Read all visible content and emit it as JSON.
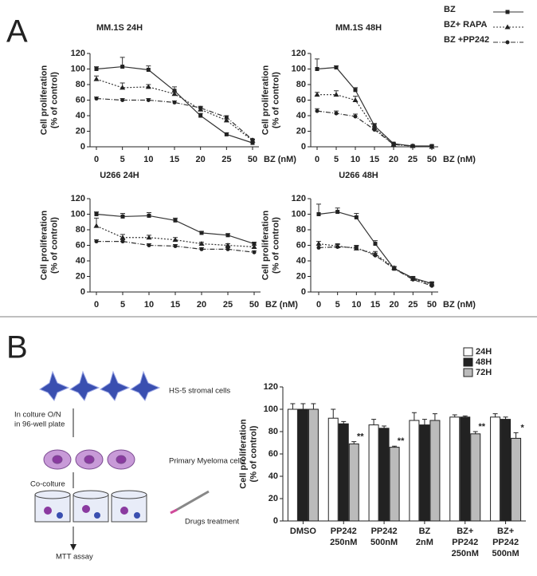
{
  "figure": {
    "panel_labels": [
      "A",
      "B"
    ],
    "diagram": {
      "stromal": "HS-5 stromal cells",
      "culture": [
        "In colture O/N",
        "in 96-well plate"
      ],
      "myeloma": "Primary Myeloma cells",
      "coculture": "Co-colture",
      "drugs": "Drugs treatment",
      "assay": "MTT assay"
    }
  },
  "chart_data": [
    {
      "type": "line",
      "title": "MM.1S 24H",
      "x_label": "BZ (nM)",
      "y_label": [
        "Cell proliferation",
        "(% of control)"
      ],
      "categories": [
        "0",
        "5",
        "10",
        "15",
        "20",
        "25",
        "50"
      ],
      "ylim": [
        0,
        120
      ],
      "yticks": [
        0,
        20,
        40,
        60,
        80,
        100,
        120
      ],
      "series": [
        {
          "name": "BZ",
          "color": "#333333",
          "marker": "square",
          "line_style": "solid",
          "values": [
            100,
            103,
            99,
            72,
            40,
            16,
            5
          ],
          "errors": [
            3,
            12,
            5,
            5,
            3,
            2,
            1
          ]
        },
        {
          "name": "BZ+ RAPA",
          "color": "#333333",
          "marker": "triangle",
          "line_style": "dotted",
          "values": [
            87,
            76,
            77,
            68,
            48,
            34,
            8
          ],
          "errors": [
            4,
            6,
            3,
            3,
            3,
            2,
            1
          ]
        },
        {
          "name": "BZ +PP242",
          "color": "#333333",
          "marker": "circle",
          "line_style": "dashdot",
          "values": [
            62,
            60,
            60,
            57,
            50,
            38,
            9
          ],
          "errors": [
            2,
            2,
            2,
            2,
            2,
            2,
            1
          ]
        }
      ]
    },
    {
      "type": "line",
      "title": "MM.1S 48H",
      "x_label": "BZ (nM)",
      "y_label": [
        "Cell proliferation",
        "(% of control)"
      ],
      "legend": "upper right",
      "categories": [
        "0",
        "5",
        "10",
        "15",
        "20",
        "25",
        "50"
      ],
      "ylim": [
        0,
        120
      ],
      "yticks": [
        0,
        20,
        40,
        60,
        80,
        100,
        120
      ],
      "series": [
        {
          "name": "BZ",
          "color": "#333333",
          "marker": "square",
          "line_style": "solid",
          "values": [
            100,
            102,
            73,
            27,
            4,
            1,
            1
          ],
          "errors": [
            13,
            2,
            3,
            3,
            1,
            1,
            1
          ]
        },
        {
          "name": "BZ+ RAPA",
          "color": "#333333",
          "marker": "triangle",
          "line_style": "dotted",
          "values": [
            67,
            67,
            60,
            24,
            3,
            1,
            0
          ],
          "errors": [
            3,
            5,
            5,
            2,
            1,
            0,
            0
          ]
        },
        {
          "name": "BZ +PP242",
          "color": "#333333",
          "marker": "circle",
          "line_style": "dashdot",
          "values": [
            46,
            43,
            39,
            22,
            3,
            1,
            0
          ],
          "errors": [
            3,
            3,
            3,
            2,
            1,
            0,
            0
          ]
        }
      ]
    },
    {
      "type": "line",
      "title": "U266 24H",
      "x_label": "BZ (nM)",
      "y_label": [
        "Cell proliferation",
        "(% of control)"
      ],
      "categories": [
        "0",
        "5",
        "10",
        "15",
        "20",
        "25",
        "50"
      ],
      "ylim": [
        0,
        120
      ],
      "yticks": [
        0,
        20,
        40,
        60,
        80,
        100,
        120
      ],
      "series": [
        {
          "name": "BZ",
          "color": "#333333",
          "marker": "square",
          "line_style": "solid",
          "values": [
            100,
            97,
            98,
            92,
            76,
            73,
            62
          ],
          "errors": [
            3,
            4,
            4,
            3,
            2,
            2,
            2
          ]
        },
        {
          "name": "BZ+ RAPA",
          "color": "#333333",
          "marker": "triangle",
          "line_style": "dotted",
          "values": [
            85,
            70,
            70,
            67,
            62,
            60,
            58
          ],
          "errors": [
            10,
            4,
            3,
            3,
            2,
            2,
            2
          ]
        },
        {
          "name": "BZ +PP242",
          "color": "#333333",
          "marker": "circle",
          "line_style": "dashdot",
          "values": [
            65,
            65,
            60,
            59,
            55,
            55,
            51
          ],
          "errors": [
            2,
            2,
            2,
            2,
            2,
            2,
            2
          ]
        }
      ]
    },
    {
      "type": "line",
      "title": "U266 48H",
      "x_label": "BZ (nM)",
      "y_label": [
        "Cell proliferation",
        "(% of control)"
      ],
      "categories": [
        "0",
        "5",
        "10",
        "15",
        "20",
        "25",
        "50"
      ],
      "ylim": [
        0,
        120
      ],
      "yticks": [
        0,
        20,
        40,
        60,
        80,
        100,
        120
      ],
      "series": [
        {
          "name": "BZ",
          "color": "#333333",
          "marker": "square",
          "line_style": "solid",
          "values": [
            100,
            103,
            96,
            62,
            30,
            18,
            11
          ],
          "errors": [
            13,
            5,
            5,
            4,
            2,
            2,
            2
          ]
        },
        {
          "name": "BZ+ RAPA",
          "color": "#333333",
          "marker": "triangle",
          "line_style": "dotted",
          "values": [
            62,
            59,
            56,
            49,
            31,
            17,
            10
          ],
          "errors": [
            3,
            3,
            3,
            3,
            2,
            2,
            2
          ]
        },
        {
          "name": "BZ +PP242",
          "color": "#333333",
          "marker": "circle",
          "line_style": "dashdot",
          "values": [
            57,
            58,
            57,
            47,
            30,
            16,
            8
          ],
          "errors": [
            3,
            3,
            3,
            3,
            2,
            2,
            2
          ]
        }
      ]
    },
    {
      "type": "bar",
      "y_label": [
        "Cell proliferation",
        "(% of control)"
      ],
      "legend": "upper right",
      "categories": [
        [
          "DMSO"
        ],
        [
          "PP242",
          "250nM"
        ],
        [
          "PP242",
          "500nM"
        ],
        [
          "BZ",
          "2nM"
        ],
        [
          "BZ+",
          "PP242",
          "250nM"
        ],
        [
          "BZ+",
          "PP242",
          "500nM"
        ]
      ],
      "ylim": [
        0,
        120
      ],
      "yticks": [
        0,
        20,
        40,
        60,
        80,
        100,
        120
      ],
      "series": [
        {
          "name": "24H",
          "color": "#ffffff",
          "values": [
            100,
            92,
            86,
            90,
            93,
            93
          ],
          "errors": [
            5,
            8,
            5,
            7,
            2,
            3
          ]
        },
        {
          "name": "48H",
          "color": "#222222",
          "values": [
            100,
            87,
            83,
            86,
            93,
            91
          ],
          "errors": [
            5,
            2,
            2,
            5,
            1,
            2
          ]
        },
        {
          "name": "72H",
          "color": "#bbbbbb",
          "values": [
            100,
            69,
            66,
            90,
            78,
            74
          ],
          "errors": [
            5,
            2,
            1,
            6,
            2,
            5
          ],
          "significance": [
            null,
            "**",
            "**",
            null,
            "**",
            "*"
          ]
        }
      ]
    }
  ]
}
